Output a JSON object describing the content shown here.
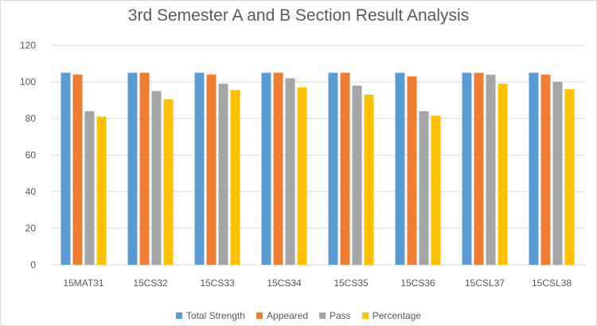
{
  "chart_data": {
    "type": "bar",
    "title": "3rd Semester A and B Section Result Analysis",
    "xlabel": "",
    "ylabel": "",
    "ylim": [
      0,
      120
    ],
    "yticks": [
      0,
      20,
      40,
      60,
      80,
      100,
      120
    ],
    "grid": true,
    "legend_position": "bottom",
    "categories": [
      "15MAT31",
      "15CS32",
      "15CS33",
      "15CS34",
      "15CS35",
      "15CS36",
      "15CSL37",
      "15CSL38"
    ],
    "series": [
      {
        "name": "Total Strength",
        "color": "#5b9bd5",
        "values": [
          105,
          105,
          105,
          105,
          105,
          105,
          105,
          105
        ]
      },
      {
        "name": "Appeared",
        "color": "#ed7d31",
        "values": [
          104,
          105,
          104,
          105,
          105,
          103,
          105,
          104
        ]
      },
      {
        "name": "Pass",
        "color": "#a5a5a5",
        "values": [
          84,
          95,
          99,
          102,
          98,
          84,
          104,
          100
        ]
      },
      {
        "name": "Percentage",
        "color": "#ffc000",
        "values": [
          81,
          90.5,
          95.5,
          97,
          93,
          81.5,
          99,
          96
        ]
      }
    ]
  }
}
